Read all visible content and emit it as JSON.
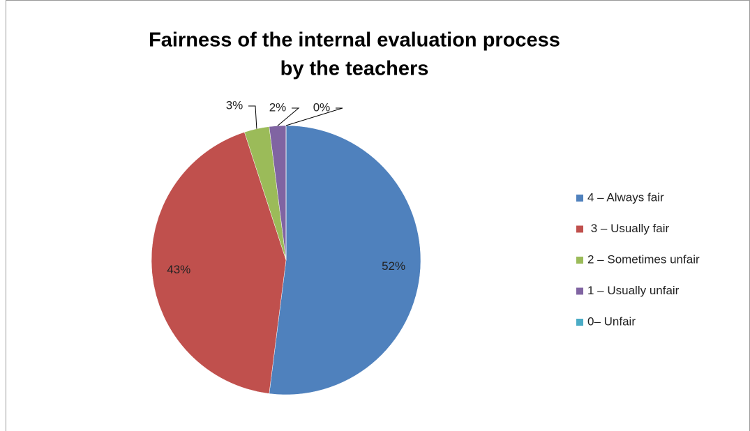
{
  "chart_data": {
    "type": "pie",
    "title": [
      "Fairness of the internal evaluation process",
      "by the teachers"
    ],
    "categories": [
      "4 – Always fair",
      " 3 – Usually fair",
      "2 – Sometimes unfair",
      "1 – Usually unfair",
      "0– Unfair"
    ],
    "values": [
      52,
      43,
      3,
      2,
      0
    ],
    "value_labels": [
      "52%",
      "43%",
      "3%",
      "2%",
      "0%"
    ],
    "colors": [
      "#4f81bd",
      "#c0504d",
      "#9bbb59",
      "#8064a2",
      "#4bacc6"
    ],
    "legend": "right"
  }
}
